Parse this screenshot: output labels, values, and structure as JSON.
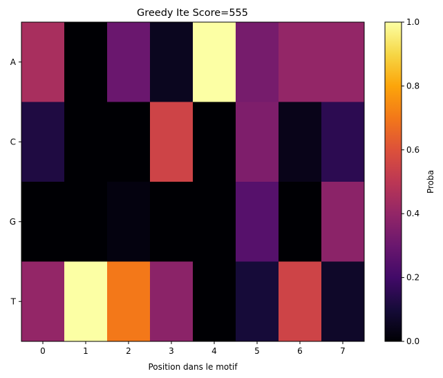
{
  "chart_data": {
    "type": "heatmap",
    "title": "Greedy Ite Score=555",
    "xlabel": "Position dans le motif",
    "ylabel": "",
    "x_categories": [
      "0",
      "1",
      "2",
      "3",
      "4",
      "5",
      "6",
      "7"
    ],
    "y_categories": [
      "A",
      "C",
      "G",
      "T"
    ],
    "values": [
      [
        0.45,
        0.0,
        0.3,
        0.05,
        1.0,
        0.33,
        0.4,
        0.4
      ],
      [
        0.12,
        0.0,
        0.0,
        0.55,
        0.0,
        0.35,
        0.04,
        0.15
      ],
      [
        0.0,
        0.0,
        0.02,
        0.0,
        0.0,
        0.25,
        0.0,
        0.38
      ],
      [
        0.4,
        1.0,
        0.7,
        0.38,
        0.0,
        0.1,
        0.55,
        0.07
      ]
    ],
    "colormap": "inferno",
    "colorbar": {
      "label": "Proba",
      "range": [
        0.0,
        1.0
      ],
      "ticks": [
        "0.0",
        "0.2",
        "0.4",
        "0.6",
        "0.8",
        "1.0"
      ]
    }
  }
}
